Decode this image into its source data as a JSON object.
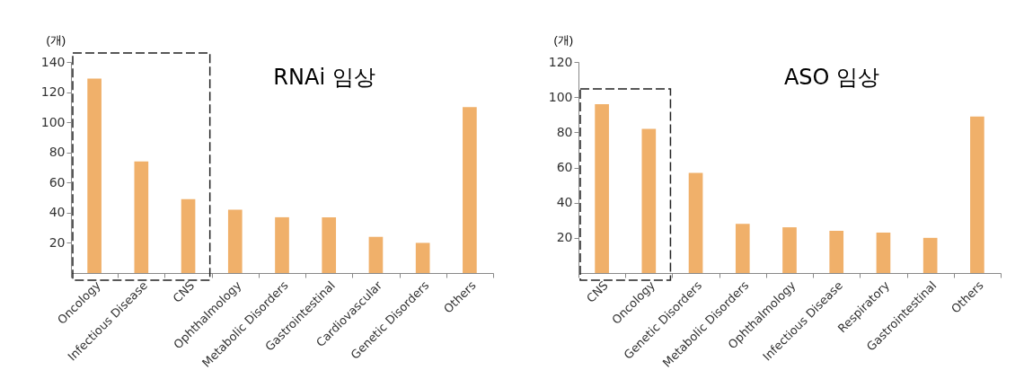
{
  "chart_data": [
    {
      "type": "bar",
      "title": "RNAi 임상",
      "ylabel": "(개)",
      "categories": [
        "Oncology",
        "Infectious Disease",
        "CNS",
        "Ophthalmology",
        "Metabolic Disorders",
        "Gastrointestinal",
        "Cardiovascular",
        "Genetic Disorders",
        "Others"
      ],
      "values": [
        129,
        74,
        49,
        42,
        37,
        37,
        24,
        20,
        110
      ],
      "color": "#f0b06a",
      "ylim": [
        0,
        140
      ],
      "yticks": [
        20,
        40,
        60,
        80,
        100,
        120,
        140
      ],
      "grid": false
    },
    {
      "type": "bar",
      "title": "ASO 임상",
      "ylabel": "(개)",
      "categories": [
        "CNS",
        "Oncology",
        "Genetic Disorders",
        "Metabolic Disorders",
        "Ophthalmology",
        "Infectious Disease",
        "Respiratory",
        "Gastrointestinal",
        "Others"
      ],
      "values": [
        96,
        82,
        57,
        28,
        26,
        24,
        23,
        20,
        89
      ],
      "color": "#f0b06a",
      "ylim": [
        0,
        120
      ],
      "yticks": [
        20,
        40,
        60,
        80,
        100,
        120
      ],
      "grid": false
    }
  ]
}
